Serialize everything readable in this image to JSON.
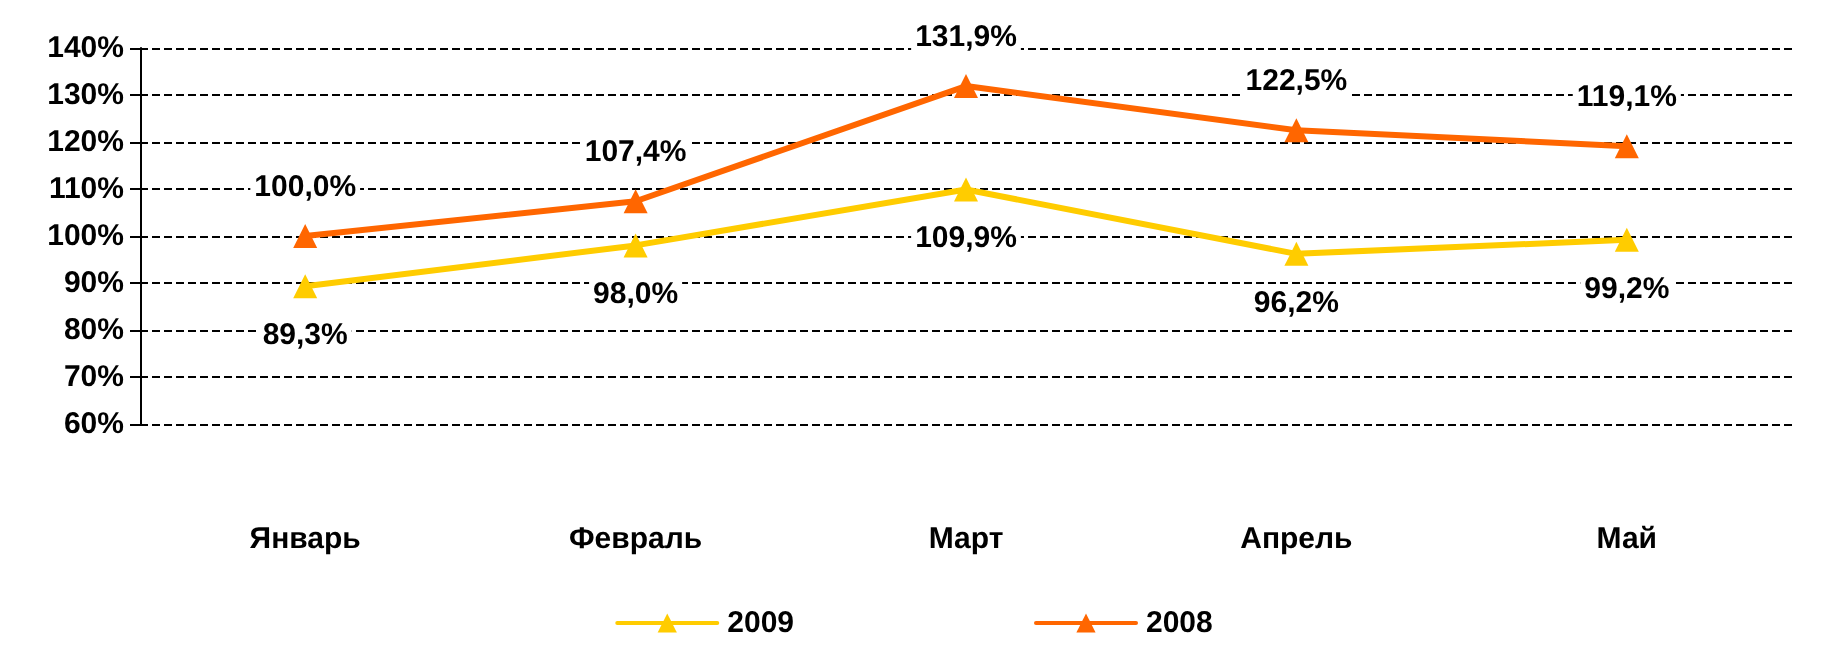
{
  "chart_data": {
    "type": "line",
    "categories": [
      "Январь",
      "Февраль",
      "Март",
      "Апрель",
      "Май"
    ],
    "series": [
      {
        "name": "2009",
        "color": "#ffcc00",
        "values": [
          89.3,
          98.0,
          109.9,
          96.2,
          99.2
        ],
        "value_labels": [
          "89,3%",
          "98,0%",
          "109,9%",
          "96,2%",
          "99,2%"
        ]
      },
      {
        "name": "2008",
        "color": "#ff6600",
        "values": [
          100.0,
          107.4,
          131.9,
          122.5,
          119.1
        ],
        "value_labels": [
          "100,0%",
          "107,4%",
          "131,9%",
          "122,5%",
          "119,1%"
        ]
      }
    ],
    "ylim": [
      60,
      140
    ],
    "yticks": [
      {
        "value": 60,
        "label": "60%"
      },
      {
        "value": 70,
        "label": "70%"
      },
      {
        "value": 80,
        "label": "80%"
      },
      {
        "value": 90,
        "label": "90%"
      },
      {
        "value": 100,
        "label": "100%"
      },
      {
        "value": 110,
        "label": "110%"
      },
      {
        "value": 120,
        "label": "120%"
      },
      {
        "value": 130,
        "label": "130%"
      },
      {
        "value": 140,
        "label": "140%"
      }
    ],
    "grid": "y",
    "legend": "bottom",
    "marker": "triangle",
    "line_style": "solid"
  }
}
